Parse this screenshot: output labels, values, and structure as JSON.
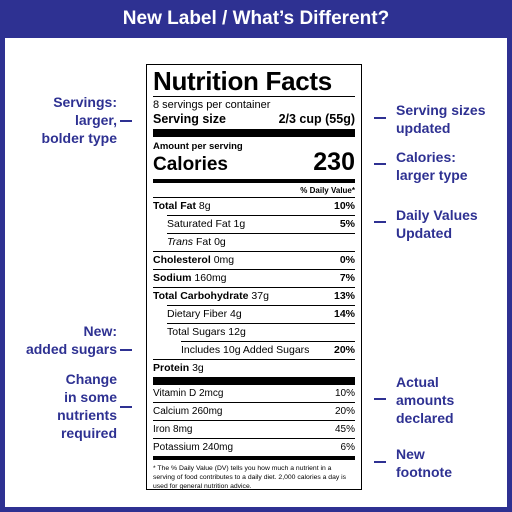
{
  "header": {
    "title": "New Label / What’s Different?"
  },
  "callouts_left": [
    {
      "lines": [
        "Servings:",
        "larger,",
        "bolder type"
      ]
    },
    {
      "lines": [
        "New:",
        "added sugars"
      ]
    },
    {
      "lines": [
        "Change",
        "in some",
        "nutrients",
        "required"
      ]
    }
  ],
  "callouts_right": [
    {
      "lines": [
        "Serving sizes",
        "updated"
      ]
    },
    {
      "lines": [
        "Calories:",
        "larger type"
      ]
    },
    {
      "lines": [
        "Daily Values",
        "Updated"
      ]
    },
    {
      "lines": [
        "Actual",
        "amounts",
        "declared"
      ]
    },
    {
      "lines": [
        "New",
        "footnote"
      ]
    }
  ],
  "label": {
    "title": "Nutrition Facts",
    "servings_per_container": "8 servings per container",
    "serving_size_label": "Serving size",
    "serving_size_value": "2/3 cup (55g)",
    "amount_per_serving": "Amount per serving",
    "calories_label": "Calories",
    "calories_value": "230",
    "dv_header": "% Daily Value*",
    "nutrients": [
      {
        "name": "Total Fat",
        "amount": "8g",
        "dv": "10%",
        "bold": true,
        "indent": 0
      },
      {
        "name": "Saturated Fat",
        "amount": "1g",
        "dv": "5%",
        "bold": false,
        "indent": 1
      },
      {
        "name": "Trans",
        "name_suffix": " Fat",
        "amount": "0g",
        "dv": "",
        "bold": false,
        "indent": 1
      },
      {
        "name": "Cholesterol",
        "amount": "0mg",
        "dv": "0%",
        "bold": true,
        "indent": 0
      },
      {
        "name": "Sodium",
        "amount": "160mg",
        "dv": "7%",
        "bold": true,
        "indent": 0
      },
      {
        "name": "Total Carbohydrate",
        "amount": "37g",
        "dv": "13%",
        "bold": true,
        "indent": 0
      },
      {
        "name": "Dietary Fiber",
        "amount": "4g",
        "dv": "14%",
        "bold": false,
        "indent": 1
      },
      {
        "name": "Total Sugars",
        "amount": "12g",
        "dv": "",
        "bold": false,
        "indent": 1
      },
      {
        "name": "Includes 10g Added Sugars",
        "amount": "",
        "dv": "20%",
        "bold": false,
        "indent": 2
      },
      {
        "name": "Protein",
        "amount": "3g",
        "dv": "",
        "bold": true,
        "indent": 0
      }
    ],
    "vitamins": [
      {
        "name": "Vitamin D 2mcg",
        "dv": "10%"
      },
      {
        "name": "Calcium 260mg",
        "dv": "20%"
      },
      {
        "name": "Iron 8mg",
        "dv": "45%"
      },
      {
        "name": "Potassium 240mg",
        "dv": "6%"
      }
    ],
    "footnote": "* The % Daily Value (DV) tells you how much a nutrient in a serving of food contributes to a daily diet. 2,000 calories a day is used for general nutrition advice."
  },
  "colors": {
    "accent": "#2e3192",
    "background": "#ffffff",
    "label_text": "#000000"
  }
}
